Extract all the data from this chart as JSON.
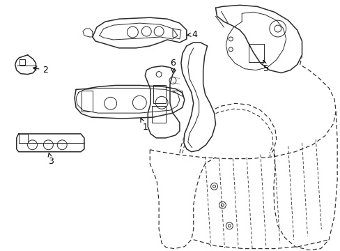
{
  "background_color": "#ffffff",
  "line_color": "#2a2a2a",
  "label_color": "#000000",
  "lw_main": 1.1,
  "lw_detail": 0.7,
  "lw_dash": 0.85
}
